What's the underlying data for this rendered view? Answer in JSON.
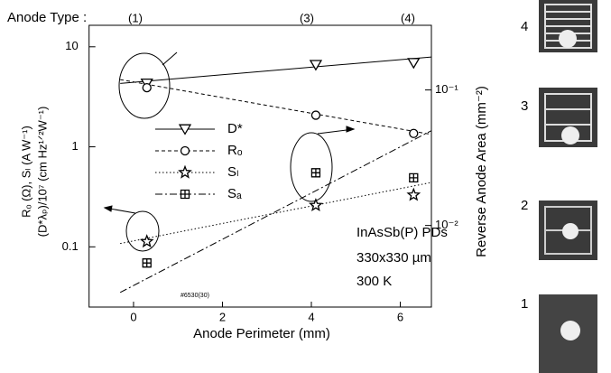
{
  "chart_data": {
    "type": "scatter",
    "top_label": "Anode Type :",
    "anode_labels": [
      "(1)",
      "(3)",
      "(4)"
    ],
    "xlabel": "Anode Perimeter (mm)",
    "ylabel": [
      "Rₒ (Ω), Sₗ (A W⁻¹)",
      "(D*λₚ)/10⁷ (cm Hz¹ᐟ²W⁻¹)"
    ],
    "y2label": "Reverse Anode Area (mm⁻²)",
    "annotations": [
      "InAsSb(P) PDs",
      "330x330 µm",
      "300 K"
    ],
    "sample_id": "#6530(30)",
    "x": [
      0.3,
      4.1,
      6.3
    ],
    "series": [
      {
        "name": "D*",
        "color": "#000000",
        "marker": "triangle-down",
        "dash": "",
        "values": [
          4.3,
          6.6,
          6.9
        ],
        "fit": {
          "x": [
            -0.3,
            6.7
          ],
          "values": [
            4.3,
            7.9
          ]
        }
      },
      {
        "name": "Rₒ",
        "color": "#000000",
        "marker": "circle",
        "dash": "4,3",
        "values": [
          3.9,
          2.07,
          1.36
        ],
        "fit": {
          "x": [
            -0.3,
            6.7
          ],
          "values": [
            4.7,
            1.33
          ]
        }
      },
      {
        "name": "Sₗ",
        "color": "#000000",
        "marker": "star",
        "dash": "1.5,2.5",
        "values": [
          0.113,
          0.26,
          0.33
        ],
        "fit": {
          "x": [
            -0.3,
            6.7
          ],
          "values": [
            0.108,
            0.44
          ]
        }
      },
      {
        "name": "Sₐ",
        "color": "#000000",
        "marker": "square-cross",
        "dash": "8,3,2,3",
        "values": [
          0.069,
          0.55,
          0.49
        ],
        "fit": {
          "x": [
            -0.3,
            6.7
          ],
          "values": [
            0.035,
            1.45
          ]
        }
      }
    ],
    "xlim": [
      -1,
      6.7
    ],
    "xticks": [
      0,
      2,
      4,
      6
    ],
    "ylim": [
      0.025,
      16.4
    ],
    "yticks": [
      0.1,
      1,
      10
    ],
    "ylog": true,
    "y2lim": [
      0.0025,
      0.3
    ],
    "y2ticks": [
      {
        "value": 0.1,
        "label": "10⁻¹"
      },
      {
        "value": 0.01,
        "label": "10⁻²"
      }
    ],
    "y2log": true,
    "anode_images": [
      {
        "label": "4"
      },
      {
        "label": "3"
      },
      {
        "label": "2"
      },
      {
        "label": "1"
      }
    ]
  }
}
